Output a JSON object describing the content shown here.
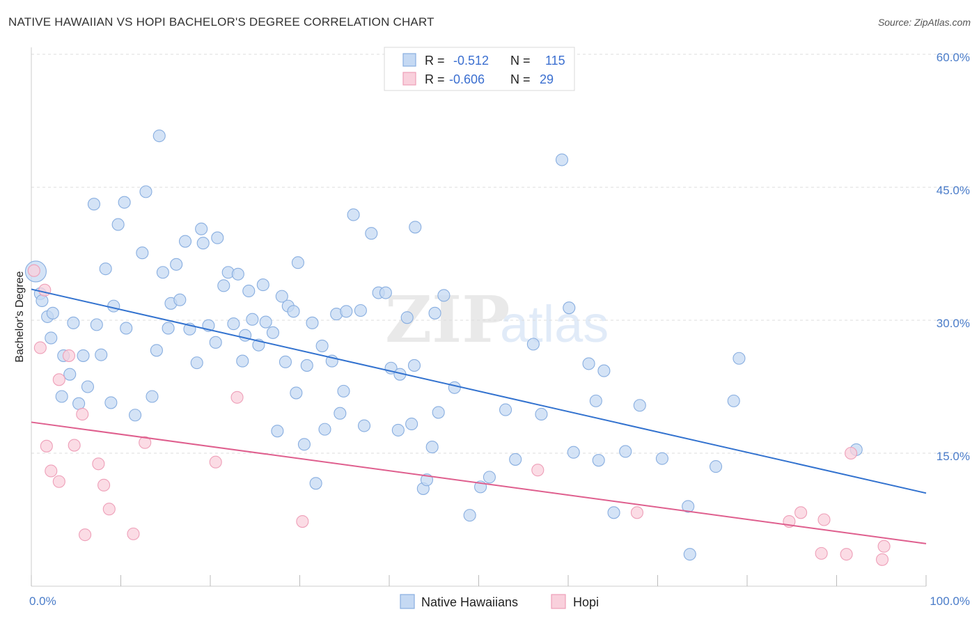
{
  "header": {
    "title": "NATIVE HAWAIIAN VS HOPI BACHELOR'S DEGREE CORRELATION CHART",
    "source": "Source: ZipAtlas.com"
  },
  "watermark": {
    "zip": "ZIP",
    "atlas": "atlas"
  },
  "chart_data": {
    "type": "scatter",
    "ylabel": "Bachelor's Degree",
    "xlim": [
      0,
      100
    ],
    "ylim": [
      0,
      60
    ],
    "x_tick_labels": [
      {
        "value": 0,
        "label": "0.0%"
      },
      {
        "value": 100,
        "label": "100.0%"
      }
    ],
    "y_tick_labels": [
      {
        "value": 15,
        "label": "15.0%"
      },
      {
        "value": 30,
        "label": "30.0%"
      },
      {
        "value": 45,
        "label": "45.0%"
      },
      {
        "value": 60,
        "label": "60.0%"
      }
    ],
    "grid": true,
    "legend_top": {
      "placement": "top-center",
      "rows": [
        {
          "r_label": "R =",
          "r_value": "-0.512",
          "n_label": "N =",
          "n_value": "115",
          "color": "#a9c8f0"
        },
        {
          "r_label": "R =",
          "r_value": "-0.606",
          "n_label": "N =",
          "n_value": "29",
          "color": "#f5b8cb"
        }
      ]
    },
    "legend_bottom": [
      "Native Hawaiians",
      "Hopi"
    ],
    "series": [
      {
        "name": "Native Hawaiians",
        "fill": "#c5d9f3",
        "stroke": "#88aee0",
        "line_color": "#3272cf",
        "trend": {
          "x0": 0,
          "y0": 33.5,
          "x1": 100,
          "y1": 10.5
        },
        "points": [
          [
            0.5,
            35.5,
            "big"
          ],
          [
            1.0,
            33.0
          ],
          [
            1.2,
            32.2
          ],
          [
            1.8,
            30.4
          ],
          [
            2.2,
            28.0
          ],
          [
            2.4,
            30.8
          ],
          [
            3.4,
            21.4
          ],
          [
            3.6,
            26.0
          ],
          [
            4.3,
            23.9
          ],
          [
            4.7,
            29.7
          ],
          [
            5.3,
            20.6
          ],
          [
            5.8,
            26.0
          ],
          [
            6.3,
            22.5
          ],
          [
            7.0,
            43.1
          ],
          [
            7.3,
            29.5
          ],
          [
            7.8,
            26.1
          ],
          [
            8.3,
            35.8
          ],
          [
            8.9,
            20.7
          ],
          [
            9.2,
            31.6
          ],
          [
            9.7,
            40.8
          ],
          [
            10.4,
            43.3
          ],
          [
            10.6,
            29.1
          ],
          [
            11.6,
            19.3
          ],
          [
            12.4,
            37.6
          ],
          [
            12.8,
            44.5
          ],
          [
            13.5,
            21.4
          ],
          [
            14.0,
            26.6
          ],
          [
            14.3,
            50.8
          ],
          [
            14.7,
            35.4
          ],
          [
            15.3,
            29.1
          ],
          [
            15.6,
            31.9
          ],
          [
            16.2,
            36.3
          ],
          [
            16.6,
            32.3
          ],
          [
            17.2,
            38.9
          ],
          [
            17.7,
            29.0
          ],
          [
            18.5,
            25.2
          ],
          [
            19.0,
            40.3
          ],
          [
            19.2,
            38.7
          ],
          [
            19.8,
            29.4
          ],
          [
            20.6,
            27.5
          ],
          [
            20.8,
            39.3
          ],
          [
            21.5,
            33.9
          ],
          [
            22.0,
            35.4
          ],
          [
            22.6,
            29.6
          ],
          [
            23.1,
            35.2
          ],
          [
            23.6,
            25.4
          ],
          [
            23.9,
            28.3
          ],
          [
            24.3,
            33.3
          ],
          [
            24.7,
            30.1
          ],
          [
            25.4,
            27.2
          ],
          [
            25.9,
            34.0
          ],
          [
            26.2,
            29.8
          ],
          [
            27.0,
            28.6
          ],
          [
            27.5,
            17.5
          ],
          [
            28.0,
            32.7
          ],
          [
            28.4,
            25.3
          ],
          [
            28.7,
            31.6
          ],
          [
            29.3,
            31.0
          ],
          [
            29.6,
            21.8
          ],
          [
            29.8,
            36.5
          ],
          [
            30.5,
            16.0
          ],
          [
            30.8,
            24.9
          ],
          [
            31.4,
            29.7
          ],
          [
            31.8,
            11.6
          ],
          [
            32.5,
            27.1
          ],
          [
            32.8,
            17.7
          ],
          [
            33.6,
            25.4
          ],
          [
            34.1,
            30.7
          ],
          [
            34.5,
            19.5
          ],
          [
            34.9,
            22.0
          ],
          [
            35.2,
            31.0
          ],
          [
            36.0,
            41.9
          ],
          [
            36.8,
            31.1
          ],
          [
            37.2,
            18.1
          ],
          [
            38.0,
            39.8
          ],
          [
            38.8,
            33.1
          ],
          [
            39.6,
            33.1
          ],
          [
            40.2,
            24.6
          ],
          [
            41.0,
            17.6
          ],
          [
            41.2,
            23.9
          ],
          [
            42.0,
            30.3
          ],
          [
            42.5,
            18.3
          ],
          [
            42.8,
            24.9
          ],
          [
            42.9,
            40.5
          ],
          [
            43.8,
            11.0
          ],
          [
            44.2,
            12.0
          ],
          [
            44.8,
            15.7
          ],
          [
            45.1,
            30.8
          ],
          [
            45.5,
            19.6
          ],
          [
            46.1,
            32.8
          ],
          [
            47.3,
            22.4
          ],
          [
            49.0,
            8.0
          ],
          [
            50.2,
            11.2
          ],
          [
            51.2,
            12.3
          ],
          [
            53.0,
            19.9
          ],
          [
            54.1,
            14.3
          ],
          [
            56.1,
            27.3
          ],
          [
            57.0,
            19.4
          ],
          [
            59.3,
            48.1
          ],
          [
            60.1,
            31.4
          ],
          [
            60.6,
            15.1
          ],
          [
            62.3,
            25.1
          ],
          [
            63.1,
            20.9
          ],
          [
            63.4,
            14.2
          ],
          [
            64.0,
            24.3
          ],
          [
            65.1,
            8.3
          ],
          [
            66.4,
            15.2
          ],
          [
            68.0,
            20.4
          ],
          [
            70.5,
            14.4
          ],
          [
            73.4,
            9.0
          ],
          [
            73.6,
            3.6
          ],
          [
            76.5,
            13.5
          ],
          [
            78.5,
            20.9
          ],
          [
            79.1,
            25.7
          ],
          [
            92.2,
            15.4
          ]
        ]
      },
      {
        "name": "Hopi",
        "fill": "#f9d0dc",
        "stroke": "#ee9fb8",
        "line_color": "#df5f8e",
        "trend": {
          "x0": 0,
          "y0": 18.5,
          "x1": 100,
          "y1": 4.8
        },
        "points": [
          [
            0.3,
            35.6
          ],
          [
            1.0,
            26.9
          ],
          [
            1.5,
            33.4
          ],
          [
            1.7,
            15.8
          ],
          [
            2.2,
            13.0
          ],
          [
            3.1,
            11.8
          ],
          [
            3.1,
            23.3
          ],
          [
            4.2,
            26.0
          ],
          [
            4.8,
            15.9
          ],
          [
            5.7,
            19.4
          ],
          [
            6.0,
            5.8
          ],
          [
            7.5,
            13.8
          ],
          [
            8.1,
            11.4
          ],
          [
            8.7,
            8.7
          ],
          [
            11.4,
            5.9
          ],
          [
            12.7,
            16.2
          ],
          [
            20.6,
            14.0
          ],
          [
            23.0,
            21.3
          ],
          [
            30.3,
            7.3
          ],
          [
            56.6,
            13.1
          ],
          [
            67.7,
            8.3
          ],
          [
            84.7,
            7.3
          ],
          [
            86.0,
            8.3
          ],
          [
            88.3,
            3.7
          ],
          [
            88.6,
            7.5
          ],
          [
            91.1,
            3.6
          ],
          [
            91.6,
            15.0
          ],
          [
            95.1,
            3.0
          ],
          [
            95.3,
            4.5
          ]
        ]
      }
    ]
  }
}
